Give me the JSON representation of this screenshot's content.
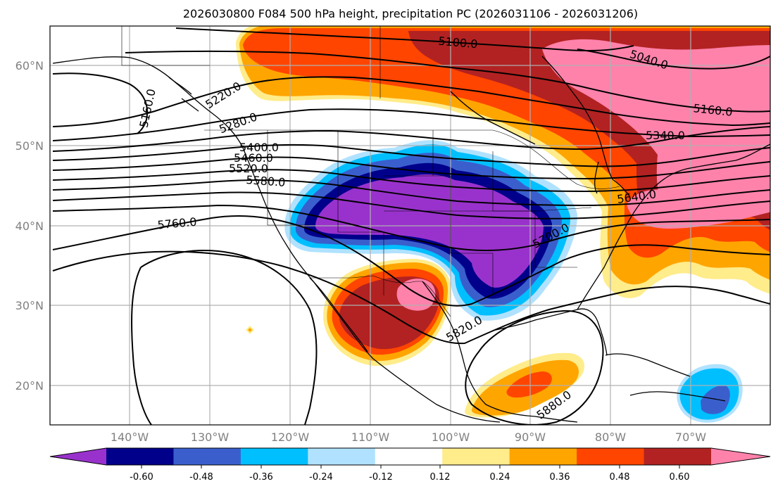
{
  "title": "2026030800 F084 500 hPa height, precipitation PC (2026031106 - 2026031206)",
  "map": {
    "lat_labels": [
      "60°N",
      "50°N",
      "40°N",
      "30°N",
      "20°N"
    ],
    "lon_labels": [
      "140°W",
      "130°W",
      "120°W",
      "110°W",
      "100°W",
      "90°W",
      "80°W",
      "70°W"
    ],
    "gridlines": true
  },
  "colorbar": {
    "ticks": [
      "-0.60",
      "-0.48",
      "-0.36",
      "-0.24",
      "-0.12",
      "0.12",
      "0.24",
      "0.36",
      "0.48",
      "0.60"
    ],
    "colors": [
      "#9932cc",
      "#00008b",
      "#3a5fcd",
      "#00bfff",
      "#b0e2ff",
      "#ffffff",
      "#ffec8b",
      "#ffa500",
      "#ff4500",
      "#b22222",
      "#ff82ab"
    ],
    "extend": "both"
  },
  "contours": {
    "color": "#000000",
    "labels": [
      "5100.0",
      "5040.0",
      "5160.0",
      "5160.0",
      "5220.0",
      "5280.0",
      "5340.0",
      "5400.0",
      "5460.0",
      "5520.0",
      "5580.0",
      "5640.0",
      "5700.0",
      "5760.0",
      "5820.0",
      "5880.0"
    ]
  }
}
